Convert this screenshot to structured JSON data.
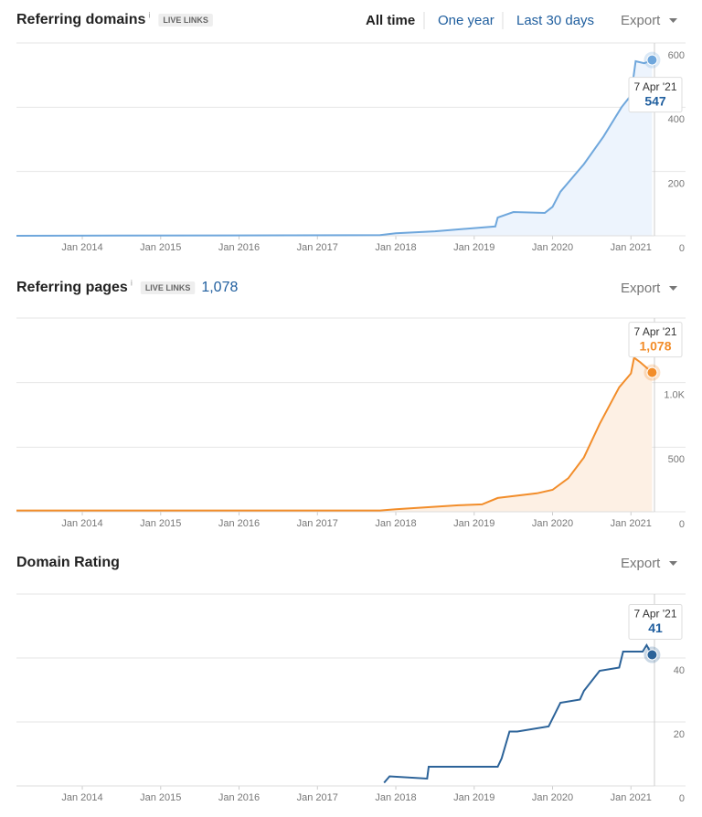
{
  "chart_data": [
    {
      "type": "line",
      "title": "Referring domains",
      "info_icon": "i",
      "badge": "LIVE LINKS",
      "time_ranges": [
        "All time",
        "One year",
        "Last 30 days"
      ],
      "export": "Export",
      "color": "#6fa7dc",
      "area_color": "#edf4fd",
      "grid": true,
      "x": [
        2013.16,
        2017.8,
        2018.0,
        2018.5,
        2019.0,
        2019.27,
        2019.3,
        2019.5,
        2019.9,
        2020.0,
        2020.1,
        2020.4,
        2020.65,
        2020.88,
        2021.0,
        2021.06,
        2021.17,
        2021.27
      ],
      "values": [
        0,
        2,
        8,
        14,
        24,
        29,
        57,
        74,
        71,
        90,
        137,
        223,
        309,
        400,
        437,
        543,
        537,
        547
      ],
      "xlim": [
        2013.16,
        2021.3
      ],
      "xticks": [
        {
          "value": 2014,
          "label": "Jan 2014"
        },
        {
          "value": 2015,
          "label": "Jan 2015"
        },
        {
          "value": 2016,
          "label": "Jan 2016"
        },
        {
          "value": 2017,
          "label": "Jan 2017"
        },
        {
          "value": 2018,
          "label": "Jan 2018"
        },
        {
          "value": 2019,
          "label": "Jan 2019"
        },
        {
          "value": 2020,
          "label": "Jan 2020"
        },
        {
          "value": 2021,
          "label": "Jan 2021"
        }
      ],
      "ylim": [
        0,
        600
      ],
      "yticks": [
        0,
        200,
        400,
        600
      ],
      "annotation": {
        "date": "7 Apr '21",
        "value": "547"
      }
    },
    {
      "type": "line",
      "title": "Referring pages",
      "info_icon": "i",
      "badge": "LIVE LINKS",
      "headline_value": "1,078",
      "export": "Export",
      "color": "#f28d2a",
      "area_color": "#fdf0e4",
      "grid": true,
      "x": [
        2013.16,
        2017.8,
        2018.0,
        2018.8,
        2019.1,
        2019.3,
        2019.8,
        2020.0,
        2020.2,
        2020.4,
        2020.6,
        2020.85,
        2021.0,
        2021.04,
        2021.12,
        2021.27
      ],
      "values": [
        10,
        10,
        20,
        50,
        57,
        107,
        143,
        170,
        260,
        420,
        680,
        964,
        1071,
        1193,
        1157,
        1078
      ],
      "xlim": [
        2013.16,
        2021.3
      ],
      "xticks": [
        {
          "value": 2014,
          "label": "Jan 2014"
        },
        {
          "value": 2015,
          "label": "Jan 2015"
        },
        {
          "value": 2016,
          "label": "Jan 2016"
        },
        {
          "value": 2017,
          "label": "Jan 2017"
        },
        {
          "value": 2018,
          "label": "Jan 2018"
        },
        {
          "value": 2019,
          "label": "Jan 2019"
        },
        {
          "value": 2020,
          "label": "Jan 2020"
        },
        {
          "value": 2021,
          "label": "Jan 2021"
        }
      ],
      "ylim": [
        0,
        1500
      ],
      "yticks": [
        0,
        500,
        {
          "value": 1000,
          "label": "1.0K"
        }
      ],
      "annotation": {
        "date": "7 Apr '21",
        "value": "1,078"
      }
    },
    {
      "type": "line",
      "title": "Domain Rating",
      "export": "Export",
      "color": "#2c6399",
      "grid": true,
      "x": [
        2017.85,
        2017.92,
        2018.4,
        2018.42,
        2019.3,
        2019.35,
        2019.45,
        2019.55,
        2019.95,
        2020.1,
        2020.35,
        2020.4,
        2020.6,
        2020.85,
        2020.9,
        2021.15,
        2021.2,
        2021.27
      ],
      "values": [
        1,
        3,
        2.3,
        6,
        6,
        8.6,
        17,
        17,
        18.6,
        26,
        27,
        29.7,
        36,
        37,
        42,
        42,
        44,
        41
      ],
      "xlim": [
        2013.16,
        2021.3
      ],
      "xticks": [
        {
          "value": 2014,
          "label": "Jan 2014"
        },
        {
          "value": 2015,
          "label": "Jan 2015"
        },
        {
          "value": 2016,
          "label": "Jan 2016"
        },
        {
          "value": 2017,
          "label": "Jan 2017"
        },
        {
          "value": 2018,
          "label": "Jan 2018"
        },
        {
          "value": 2019,
          "label": "Jan 2019"
        },
        {
          "value": 2020,
          "label": "Jan 2020"
        },
        {
          "value": 2021,
          "label": "Jan 2021"
        }
      ],
      "ylim": [
        0,
        60
      ],
      "yticks": [
        0,
        20,
        40
      ],
      "annotation": {
        "date": "7 Apr '21",
        "value": "41"
      }
    }
  ]
}
